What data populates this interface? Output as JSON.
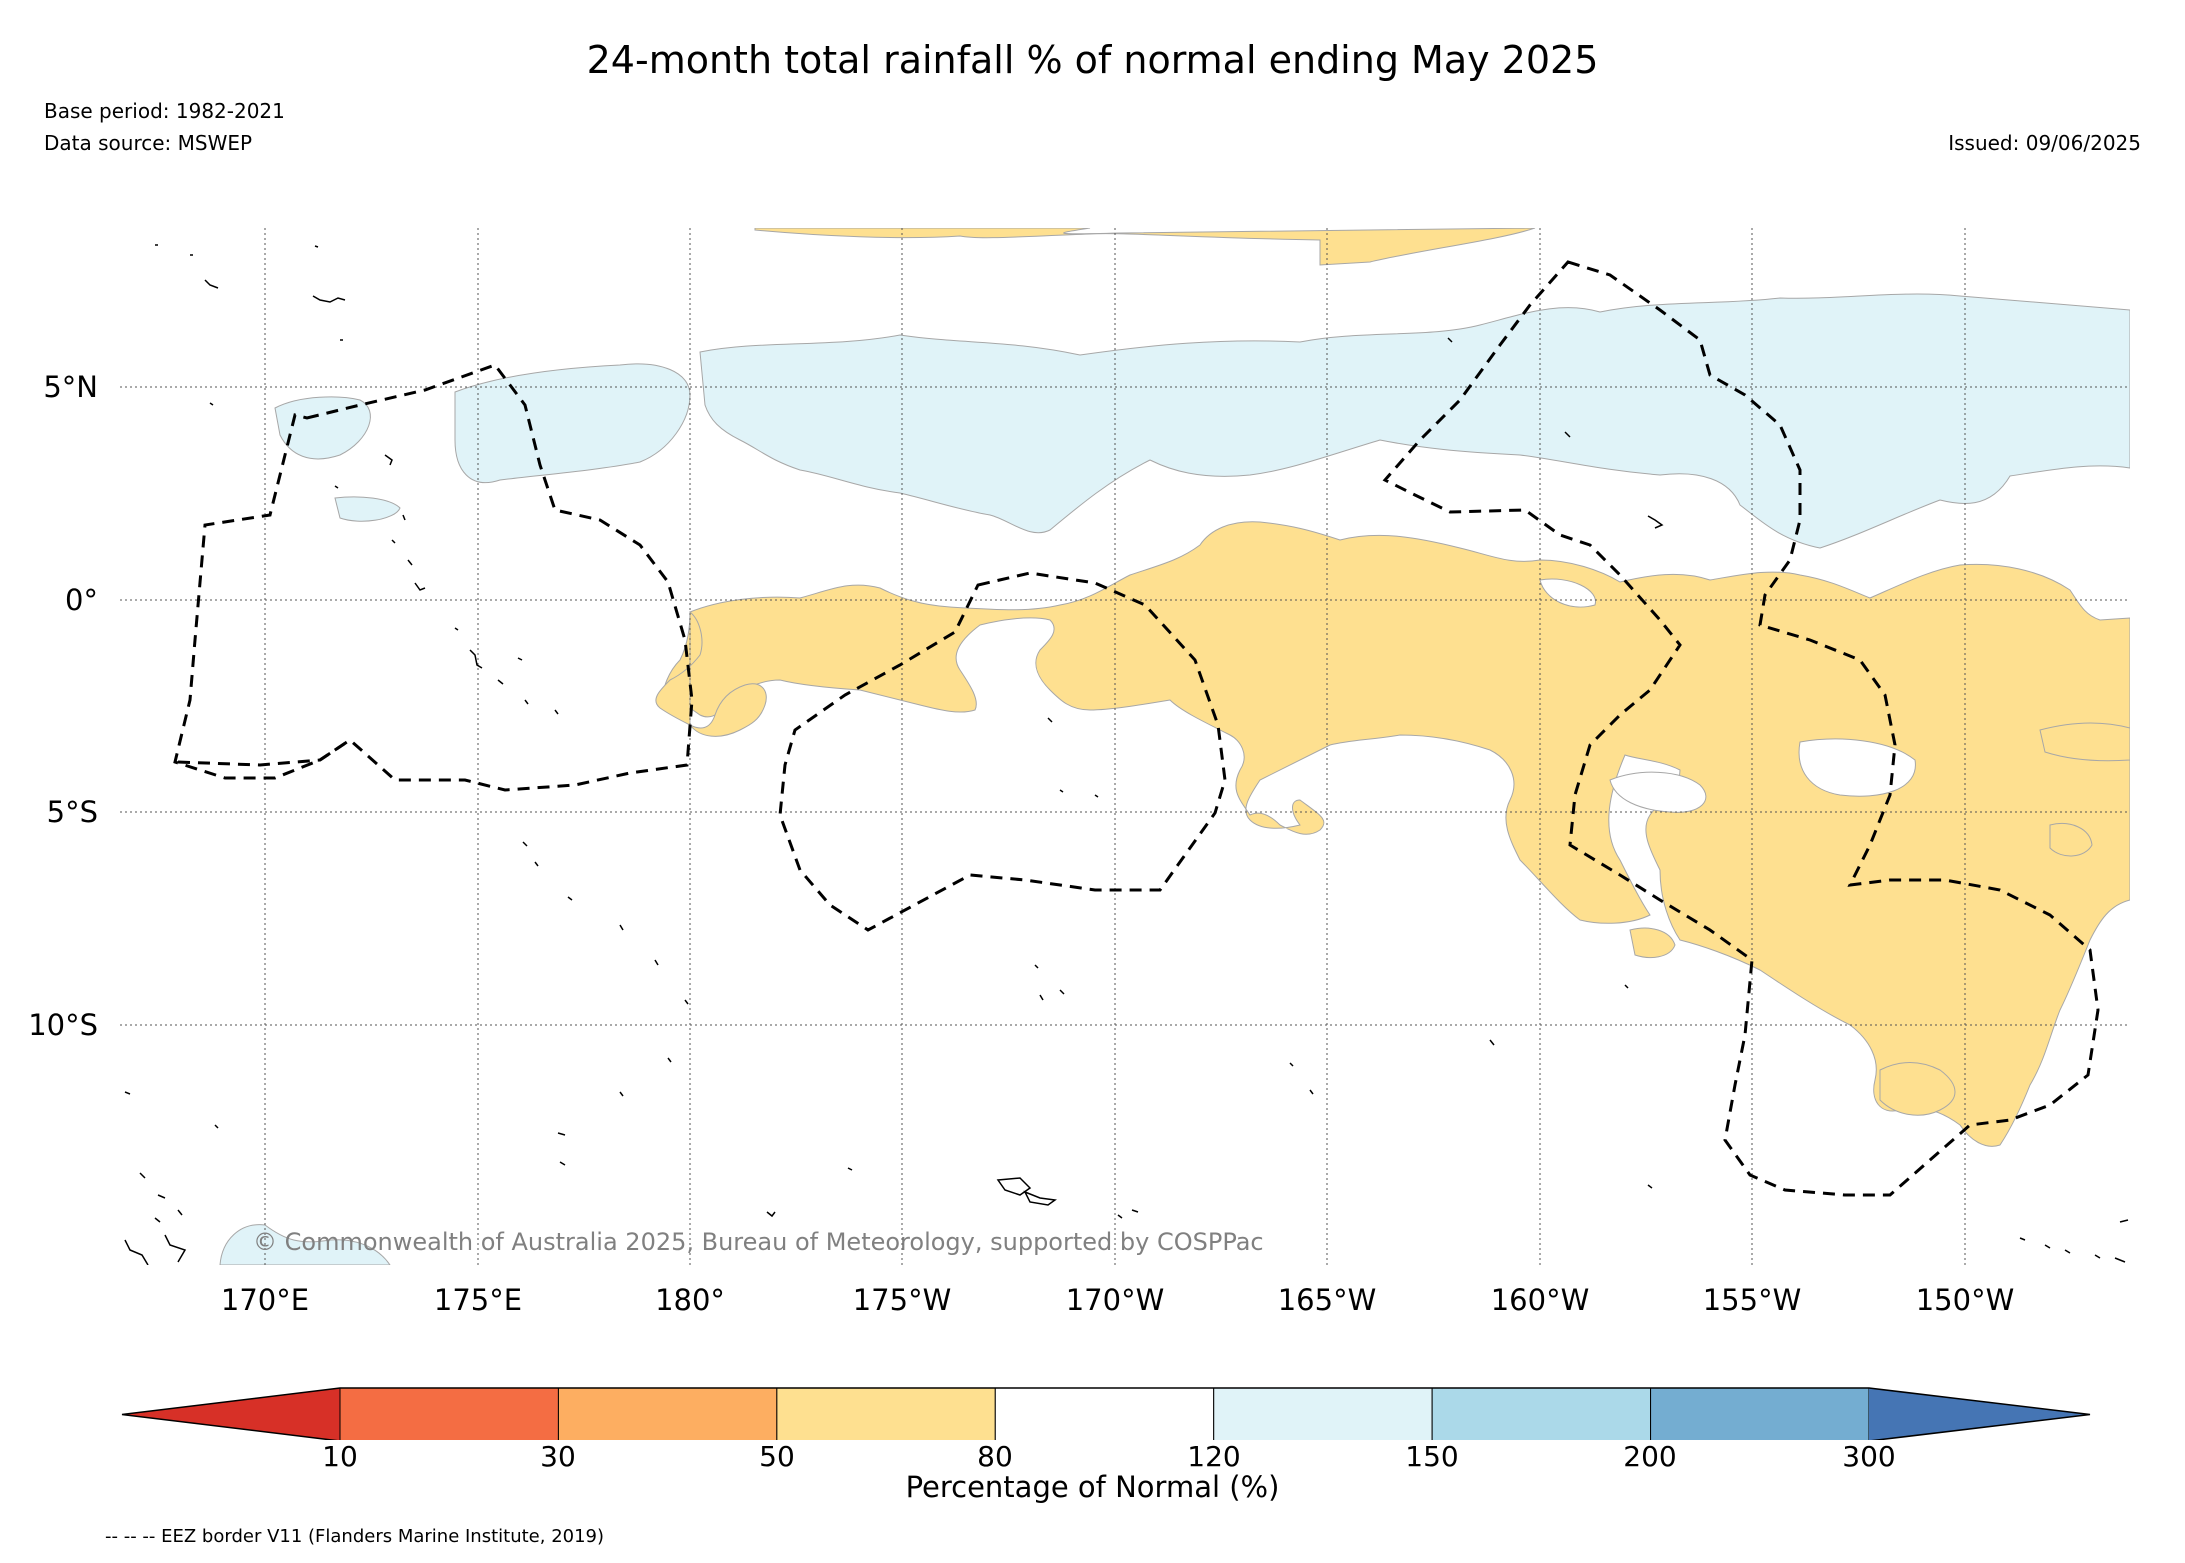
{
  "title": "24-month total rainfall % of normal ending May 2025",
  "base_period": "Base period: 1982-2021",
  "data_source": "Data source: MSWEP",
  "issued": "Issued: 09/06/2025",
  "copyright": "© Commonwealth of Australia 2025, Bureau of Meteorology, supported by COSPPac",
  "longitude_labels": [
    "170°E",
    "175°E",
    "180°",
    "175°W",
    "170°W",
    "165°W",
    "160°W",
    "155°W",
    "150°W"
  ],
  "latitude_labels": [
    "5°N",
    "0°",
    "5°S",
    "10°S"
  ],
  "colorbar": {
    "label": "Percentage of Normal (%)",
    "ticks": [
      "10",
      "30",
      "50",
      "80",
      "120",
      "150",
      "200",
      "300"
    ],
    "colors": [
      "#d73027",
      "#f46d43",
      "#fdae61",
      "#fee090",
      "#ffffff",
      "#e0f3f8",
      "#abd9e9",
      "#74add1",
      "#4575b4"
    ]
  },
  "legend_note": "-- -- -- EEZ border V11 (Flanders Marine Institute, 2019)",
  "colors": {
    "dry_50_80": "#fee090",
    "wet_120_150": "#e0f3f8",
    "eez_border": "#000000",
    "gridline": "#555555"
  }
}
